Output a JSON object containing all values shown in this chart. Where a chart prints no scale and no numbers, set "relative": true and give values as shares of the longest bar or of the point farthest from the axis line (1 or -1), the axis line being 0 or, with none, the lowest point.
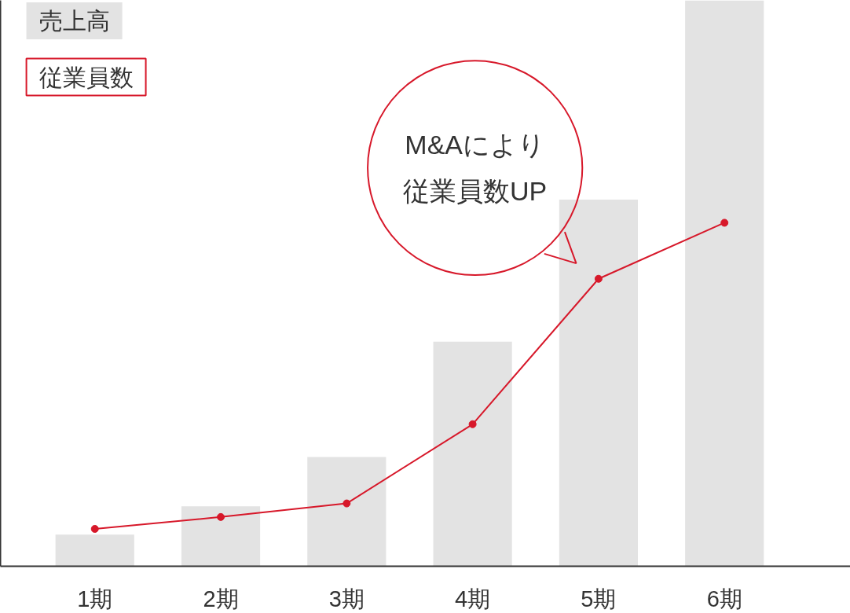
{
  "chart_data": {
    "type": "bar",
    "relative": true,
    "categories": [
      "1期",
      "2期",
      "3期",
      "4期",
      "5期",
      "6期"
    ],
    "series": [
      {
        "name": "売上高",
        "color": "#e3e3e3",
        "values": [
          0.056,
          0.106,
          0.193,
          0.397,
          0.648,
          1
        ]
      },
      {
        "name": "従業員数",
        "type": "line",
        "color": "#d7182a",
        "marker": "circle",
        "values": [
          0.066,
          0.087,
          0.111,
          0.251,
          0.508,
          0.607
        ]
      }
    ],
    "annotations": [
      "M&Aにより従業員数UP"
    ],
    "legend": "top left",
    "grid": false,
    "tick_labels": "x",
    "line_style": "solid"
  }
}
